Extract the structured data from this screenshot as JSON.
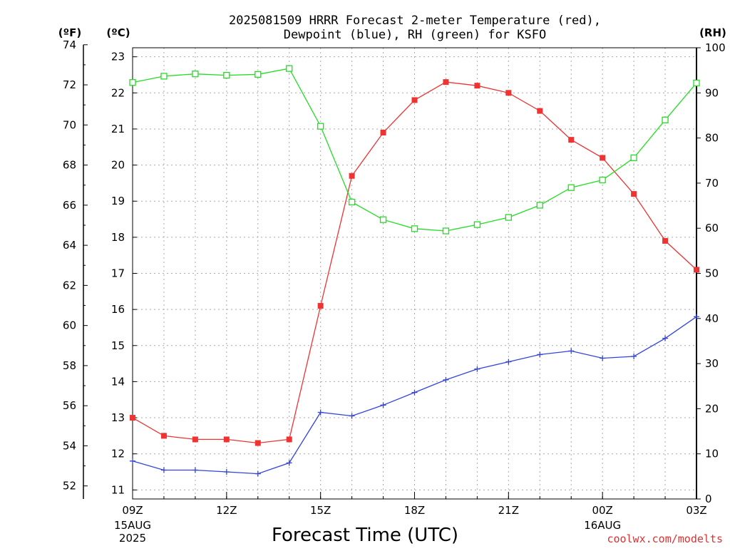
{
  "chart_data": {
    "type": "line",
    "title_lines": [
      "2025081509 HRRR Forecast 2-meter Temperature (red),",
      "Dewpoint (blue), RH (green) for KSFO"
    ],
    "xlabel": "Forecast Time (UTC)",
    "credit": "coolwx.com/modelts",
    "units": {
      "fahrenheit": "(ºF)",
      "celsius": "(ºC)",
      "rh": "(RH)"
    },
    "x": [
      "09Z",
      "10Z",
      "11Z",
      "12Z",
      "13Z",
      "14Z",
      "15Z",
      "16Z",
      "17Z",
      "18Z",
      "19Z",
      "20Z",
      "21Z",
      "22Z",
      "23Z",
      "00Z",
      "01Z",
      "02Z",
      "03Z"
    ],
    "xticks": [
      {
        "label": "09Z",
        "sub": [
          "15AUG",
          "2025"
        ]
      },
      {
        "label": "12Z",
        "sub": []
      },
      {
        "label": "15Z",
        "sub": []
      },
      {
        "label": "18Z",
        "sub": []
      },
      {
        "label": "21Z",
        "sub": []
      },
      {
        "label": "00Z",
        "sub": [
          "16AUG"
        ]
      },
      {
        "label": "03Z",
        "sub": []
      }
    ],
    "ylim_celsius": [
      10.75,
      23.25
    ],
    "ylim_rh": [
      0,
      100
    ],
    "yticks_celsius": [
      "11",
      "12",
      "13",
      "14",
      "15",
      "16",
      "17",
      "18",
      "19",
      "20",
      "21",
      "22",
      "23"
    ],
    "yticks_fahrenheit": [
      "52",
      "54",
      "56",
      "58",
      "60",
      "62",
      "64",
      "66",
      "68",
      "70",
      "72",
      "74"
    ],
    "yticks_rh": [
      "0",
      "10",
      "20",
      "30",
      "40",
      "50",
      "60",
      "70",
      "80",
      "90",
      "100"
    ],
    "grid": true,
    "series": [
      {
        "name": "Temperature",
        "color": "#ee3333",
        "axis": "celsius",
        "marker": "filled-square",
        "values": [
          13.0,
          12.5,
          12.4,
          12.4,
          12.3,
          12.4,
          16.1,
          19.7,
          20.9,
          21.8,
          22.3,
          22.2,
          22.0,
          21.5,
          20.7,
          20.2,
          19.2,
          17.9,
          17.1
        ]
      },
      {
        "name": "Dewpoint",
        "color": "#3344dd",
        "axis": "celsius",
        "marker": "plus",
        "values": [
          11.8,
          11.55,
          11.55,
          11.5,
          11.45,
          11.75,
          13.15,
          13.05,
          13.35,
          13.7,
          14.05,
          14.35,
          14.55,
          14.75,
          14.85,
          14.65,
          14.7,
          15.2,
          15.8
        ]
      },
      {
        "name": "RH",
        "color": "#22dd22",
        "axis": "rh",
        "marker": "open-square",
        "values": [
          92.3,
          93.7,
          94.2,
          93.9,
          94.1,
          95.4,
          82.6,
          65.8,
          61.9,
          59.9,
          59.4,
          60.8,
          62.4,
          65.1,
          69.0,
          70.7,
          75.6,
          84.0,
          92.2
        ]
      }
    ]
  }
}
